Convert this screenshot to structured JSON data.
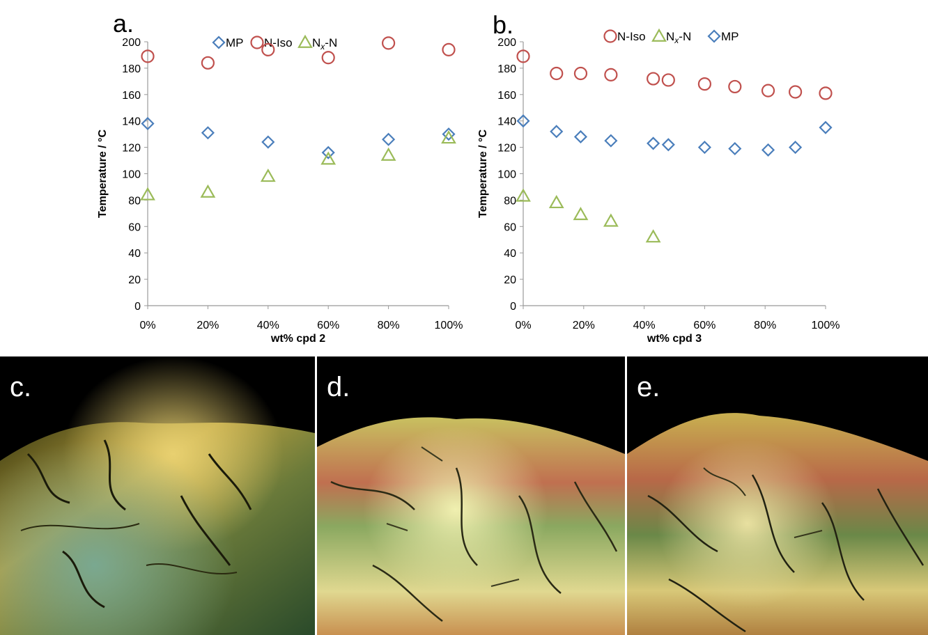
{
  "chart_data": [
    {
      "type": "scatter",
      "panel_label": "a.",
      "title": "",
      "xlabel": "wt% cpd 2",
      "ylabel": "Temperature / °C",
      "xlim": [
        0,
        100
      ],
      "ylim": [
        0,
        200
      ],
      "x_ticks": [
        "0%",
        "20%",
        "40%",
        "60%",
        "80%",
        "100%"
      ],
      "y_ticks": [
        "0",
        "20",
        "40",
        "60",
        "80",
        "100",
        "120",
        "140",
        "160",
        "180",
        "200"
      ],
      "grid": false,
      "legend_position": "top",
      "series": [
        {
          "name": "MP",
          "marker": "diamond",
          "color": "#4a7ebb",
          "x": [
            0,
            20,
            40,
            60,
            80,
            100
          ],
          "values": [
            138,
            131,
            124,
            116,
            126,
            130
          ]
        },
        {
          "name": "N-Iso",
          "marker": "circle",
          "color": "#c0504d",
          "x": [
            0,
            20,
            40,
            60,
            80,
            100
          ],
          "values": [
            189,
            184,
            194,
            188,
            199,
            194
          ]
        },
        {
          "name": "N",
          "name_subscript": "x",
          "name_suffix": "-N",
          "marker": "triangle",
          "color": "#9bbb59",
          "x": [
            0,
            20,
            40,
            60,
            80,
            100
          ],
          "values": [
            84,
            86,
            98,
            111,
            114,
            127
          ]
        }
      ]
    },
    {
      "type": "scatter",
      "panel_label": "b.",
      "title": "",
      "xlabel": "wt% cpd 3",
      "ylabel": "Temperature / °C",
      "xlim": [
        0,
        100
      ],
      "ylim": [
        0,
        200
      ],
      "x_ticks": [
        "0%",
        "20%",
        "40%",
        "60%",
        "80%",
        "100%"
      ],
      "y_ticks": [
        "0",
        "20",
        "40",
        "60",
        "80",
        "100",
        "120",
        "140",
        "160",
        "180",
        "200"
      ],
      "grid": false,
      "legend_position": "top",
      "series": [
        {
          "name": "N-Iso",
          "marker": "circle",
          "color": "#c0504d",
          "x": [
            0,
            11,
            19,
            29,
            43,
            48,
            60,
            70,
            81,
            90,
            100
          ],
          "values": [
            189,
            176,
            176,
            175,
            172,
            171,
            168,
            166,
            163,
            162,
            161
          ]
        },
        {
          "name": "N",
          "name_subscript": "x",
          "name_suffix": "-N",
          "marker": "triangle",
          "color": "#9bbb59",
          "x": [
            0,
            11,
            19,
            29,
            43
          ],
          "values": [
            83,
            78,
            69,
            64,
            52
          ]
        },
        {
          "name": "MP",
          "marker": "diamond",
          "color": "#4a7ebb",
          "x": [
            0,
            11,
            19,
            29,
            43,
            48,
            60,
            70,
            81,
            90,
            100
          ],
          "values": [
            140,
            132,
            128,
            125,
            123,
            122,
            120,
            119,
            118,
            120,
            135
          ]
        }
      ]
    }
  ],
  "photos": {
    "c": {
      "label": "c."
    },
    "d": {
      "label": "d."
    },
    "e": {
      "label": "e."
    }
  }
}
